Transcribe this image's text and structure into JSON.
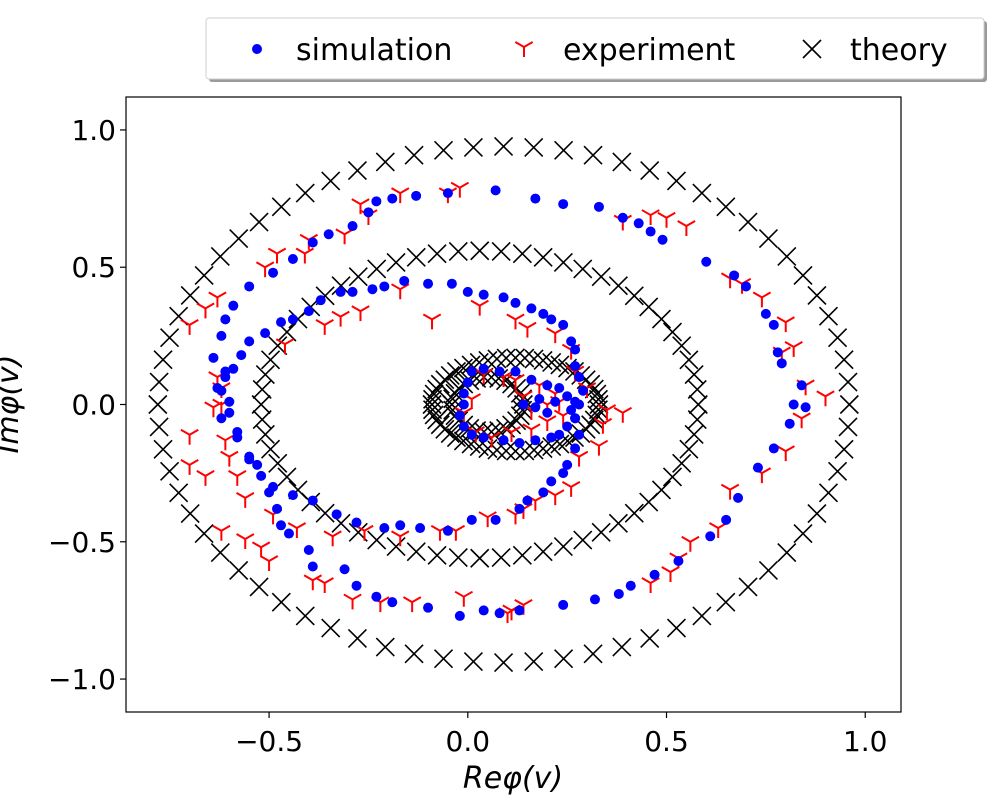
{
  "chart_data": {
    "type": "scatter",
    "xlabel": "Reφ(v)",
    "ylabel": "Imφ(v)",
    "xlim": [
      -0.86,
      1.09
    ],
    "ylim": [
      -1.12,
      1.12
    ],
    "xticks": [
      -0.5,
      0.0,
      0.5,
      1.0
    ],
    "yticks": [
      -1.0,
      -0.5,
      0.0,
      0.5,
      1.0
    ],
    "xtick_labels": [
      "−0.5",
      "0.0",
      "0.5",
      "1.0"
    ],
    "ytick_labels": [
      "−1.0",
      "−0.5",
      "0.0",
      "0.5",
      "1.0"
    ],
    "grid": false,
    "legend": {
      "placement": "top (outside, right-aligned)",
      "columns": 3
    },
    "series": [
      {
        "name": "simulation",
        "marker": "circle",
        "color": "#0000ff",
        "points": [
          [
            0.07,
            0.78
          ],
          [
            -0.05,
            0.77
          ],
          [
            0.17,
            0.75
          ],
          [
            -0.13,
            0.76
          ],
          [
            0.24,
            0.73
          ],
          [
            -0.19,
            0.75
          ],
          [
            0.33,
            0.72
          ],
          [
            -0.23,
            0.74
          ],
          [
            0.39,
            0.68
          ],
          [
            -0.25,
            0.7
          ],
          [
            0.43,
            0.66
          ],
          [
            -0.29,
            0.65
          ],
          [
            0.46,
            0.63
          ],
          [
            -0.35,
            0.62
          ],
          [
            0.49,
            0.6
          ],
          [
            -0.39,
            0.59
          ],
          [
            0.6,
            0.52
          ],
          [
            -0.44,
            0.53
          ],
          [
            0.67,
            0.47
          ],
          [
            -0.49,
            0.48
          ],
          [
            0.7,
            0.43
          ],
          [
            -0.55,
            0.43
          ],
          [
            0.75,
            0.33
          ],
          [
            -0.59,
            0.36
          ],
          [
            0.77,
            0.29
          ],
          [
            -0.61,
            0.31
          ],
          [
            0.78,
            0.19
          ],
          [
            -0.62,
            0.25
          ],
          [
            0.79,
            0.15
          ],
          [
            -0.64,
            0.17
          ],
          [
            0.84,
            0.07
          ],
          [
            -0.61,
            0.12
          ],
          [
            0.82,
            0.0
          ],
          [
            -0.63,
            0.06
          ],
          [
            0.85,
            -0.01
          ],
          [
            -0.6,
            0.01
          ],
          [
            0.81,
            -0.07
          ],
          [
            -0.62,
            -0.05
          ],
          [
            0.77,
            -0.16
          ],
          [
            -0.58,
            -0.1
          ],
          [
            0.73,
            -0.23
          ],
          [
            -0.55,
            -0.2
          ],
          [
            0.68,
            -0.34
          ],
          [
            -0.52,
            -0.26
          ],
          [
            0.65,
            -0.42
          ],
          [
            -0.5,
            -0.32
          ],
          [
            0.61,
            -0.48
          ],
          [
            -0.48,
            -0.38
          ],
          [
            0.53,
            -0.57
          ],
          [
            -0.47,
            -0.44
          ],
          [
            0.47,
            -0.62
          ],
          [
            -0.45,
            -0.47
          ],
          [
            0.41,
            -0.66
          ],
          [
            -0.4,
            -0.53
          ],
          [
            0.38,
            -0.69
          ],
          [
            -0.39,
            -0.59
          ],
          [
            0.32,
            -0.71
          ],
          [
            -0.31,
            -0.6
          ],
          [
            0.24,
            -0.73
          ],
          [
            -0.28,
            -0.66
          ],
          [
            0.13,
            -0.75
          ],
          [
            -0.23,
            -0.7
          ],
          [
            0.08,
            -0.76
          ],
          [
            -0.19,
            -0.72
          ],
          [
            0.04,
            -0.75
          ],
          [
            -0.1,
            -0.74
          ],
          [
            -0.02,
            -0.77
          ],
          [
            -0.21,
            -0.45
          ],
          [
            -0.17,
            -0.44
          ],
          [
            -0.12,
            -0.45
          ],
          [
            -0.05,
            -0.46
          ],
          [
            0.01,
            -0.42
          ],
          [
            0.07,
            -0.42
          ],
          [
            0.13,
            -0.38
          ],
          [
            0.15,
            -0.35
          ],
          [
            0.19,
            -0.32
          ],
          [
            0.21,
            -0.28
          ],
          [
            0.24,
            -0.25
          ],
          [
            0.25,
            -0.22
          ],
          [
            0.27,
            -0.16
          ],
          [
            0.28,
            -0.11
          ],
          [
            0.27,
            -0.05
          ],
          [
            0.28,
            0.0
          ],
          [
            0.29,
            0.05
          ],
          [
            0.28,
            0.1
          ],
          [
            0.27,
            0.14
          ],
          [
            0.27,
            0.2
          ],
          [
            0.26,
            0.23
          ],
          [
            0.24,
            0.29
          ],
          [
            0.21,
            0.31
          ],
          [
            0.19,
            0.33
          ],
          [
            0.16,
            0.35
          ],
          [
            0.12,
            0.37
          ],
          [
            0.09,
            0.39
          ],
          [
            0.04,
            0.4
          ],
          [
            0.0,
            0.41
          ],
          [
            -0.04,
            0.44
          ],
          [
            -0.1,
            0.44
          ],
          [
            -0.16,
            0.45
          ],
          [
            -0.21,
            0.43
          ],
          [
            -0.24,
            0.42
          ],
          [
            -0.29,
            0.41
          ],
          [
            -0.32,
            0.41
          ],
          [
            -0.37,
            0.38
          ],
          [
            -0.4,
            0.34
          ],
          [
            -0.44,
            0.31
          ],
          [
            -0.47,
            0.3
          ],
          [
            -0.51,
            0.26
          ],
          [
            -0.55,
            0.23
          ],
          [
            -0.57,
            0.18
          ],
          [
            -0.59,
            0.13
          ],
          [
            -0.61,
            0.1
          ],
          [
            -0.62,
            0.05
          ],
          [
            -0.6,
            -0.03
          ],
          [
            -0.58,
            -0.12
          ],
          [
            -0.55,
            -0.19
          ],
          [
            -0.53,
            -0.22
          ],
          [
            -0.49,
            -0.3
          ],
          [
            -0.44,
            -0.33
          ],
          [
            -0.39,
            -0.35
          ],
          [
            -0.33,
            -0.4
          ],
          [
            -0.28,
            -0.43
          ],
          [
            0.01,
            0.12
          ],
          [
            0.04,
            0.13
          ],
          [
            0.08,
            0.12
          ],
          [
            0.12,
            0.12
          ],
          [
            0.16,
            0.09
          ],
          [
            0.2,
            0.07
          ],
          [
            0.23,
            0.06
          ],
          [
            0.25,
            0.03
          ],
          [
            0.27,
            0.01
          ],
          [
            0.26,
            -0.02
          ],
          [
            0.27,
            -0.05
          ],
          [
            0.25,
            -0.08
          ],
          [
            0.23,
            -0.11
          ],
          [
            0.21,
            -0.12
          ],
          [
            0.17,
            -0.13
          ],
          [
            0.13,
            -0.14
          ],
          [
            0.09,
            -0.13
          ],
          [
            0.04,
            -0.12
          ],
          [
            0.01,
            -0.11
          ],
          [
            -0.01,
            -0.08
          ],
          [
            -0.02,
            -0.04
          ],
          [
            -0.01,
            0.0
          ],
          [
            -0.01,
            0.04
          ],
          [
            0.0,
            0.08
          ],
          [
            0.17,
            -0.01
          ],
          [
            0.18,
            0.02
          ],
          [
            0.2,
            -0.03
          ],
          [
            0.22,
            0.01
          ],
          [
            0.14,
            0.0
          ]
        ]
      },
      {
        "name": "experiment",
        "marker": "tri_down",
        "color": "#ff0000",
        "points": [
          [
            -0.02,
            0.79
          ],
          [
            -0.17,
            0.77
          ],
          [
            -0.27,
            0.73
          ],
          [
            -0.05,
            0.77
          ],
          [
            0.39,
            0.67
          ],
          [
            0.46,
            0.69
          ],
          [
            0.5,
            0.68
          ],
          [
            0.55,
            0.65
          ],
          [
            0.66,
            0.46
          ],
          [
            0.69,
            0.44
          ],
          [
            0.74,
            0.39
          ],
          [
            0.8,
            0.3
          ],
          [
            0.82,
            0.21
          ],
          [
            0.79,
            0.19
          ],
          [
            0.85,
            0.07
          ],
          [
            0.9,
            0.03
          ],
          [
            0.84,
            -0.05
          ],
          [
            0.8,
            -0.17
          ],
          [
            0.74,
            -0.25
          ],
          [
            0.66,
            -0.31
          ],
          [
            0.63,
            -0.45
          ],
          [
            0.56,
            -0.5
          ],
          [
            0.53,
            -0.56
          ],
          [
            0.51,
            -0.61
          ],
          [
            0.46,
            -0.65
          ],
          [
            0.14,
            -0.73
          ],
          [
            0.11,
            -0.75
          ],
          [
            0.1,
            -0.76
          ],
          [
            -0.01,
            -0.7
          ],
          [
            -0.14,
            -0.72
          ],
          [
            -0.22,
            -0.72
          ],
          [
            -0.29,
            -0.71
          ],
          [
            -0.36,
            -0.65
          ],
          [
            -0.39,
            -0.64
          ],
          [
            -0.5,
            -0.57
          ],
          [
            -0.52,
            -0.52
          ],
          [
            -0.56,
            -0.49
          ],
          [
            -0.62,
            -0.46
          ],
          [
            -0.66,
            -0.26
          ],
          [
            -0.7,
            -0.22
          ],
          [
            -0.7,
            -0.11
          ],
          [
            -0.61,
            -0.13
          ],
          [
            -0.64,
            -0.01
          ],
          [
            -0.62,
            0.06
          ],
          [
            -0.63,
            0.1
          ],
          [
            -0.7,
            0.29
          ],
          [
            -0.66,
            0.35
          ],
          [
            -0.63,
            0.39
          ],
          [
            -0.48,
            0.55
          ],
          [
            -0.51,
            0.5
          ],
          [
            -0.41,
            0.55
          ],
          [
            -0.4,
            0.6
          ],
          [
            -0.31,
            0.62
          ],
          [
            -0.25,
            0.69
          ],
          [
            -0.46,
            0.22
          ],
          [
            -0.36,
            0.29
          ],
          [
            -0.32,
            0.32
          ],
          [
            -0.27,
            0.34
          ],
          [
            -0.17,
            0.42
          ],
          [
            -0.09,
            0.31
          ],
          [
            0.03,
            0.36
          ],
          [
            0.12,
            0.31
          ],
          [
            0.15,
            0.28
          ],
          [
            0.22,
            0.26
          ],
          [
            0.26,
            0.2
          ],
          [
            0.27,
            0.12
          ],
          [
            0.3,
            0.06
          ],
          [
            0.35,
            -0.02
          ],
          [
            0.34,
            -0.07
          ],
          [
            0.39,
            -0.03
          ],
          [
            0.33,
            -0.15
          ],
          [
            0.28,
            -0.19
          ],
          [
            0.26,
            -0.3
          ],
          [
            0.22,
            -0.33
          ],
          [
            0.17,
            -0.35
          ],
          [
            0.14,
            -0.38
          ],
          [
            0.12,
            -0.4
          ],
          [
            0.05,
            -0.41
          ],
          [
            -0.03,
            -0.46
          ],
          [
            -0.07,
            -0.46
          ],
          [
            -0.17,
            -0.48
          ],
          [
            -0.26,
            -0.46
          ],
          [
            -0.34,
            -0.48
          ],
          [
            -0.43,
            -0.45
          ],
          [
            -0.49,
            -0.4
          ],
          [
            -0.56,
            -0.34
          ],
          [
            -0.58,
            -0.26
          ],
          [
            -0.6,
            -0.19
          ],
          [
            -0.62,
            0.0
          ],
          [
            0.04,
            0.11
          ],
          [
            0.09,
            0.1
          ],
          [
            0.12,
            0.09
          ],
          [
            0.18,
            0.07
          ],
          [
            0.22,
            0.04
          ],
          [
            0.23,
            0.01
          ],
          [
            0.24,
            -0.04
          ],
          [
            0.2,
            -0.06
          ],
          [
            0.16,
            -0.09
          ],
          [
            0.11,
            -0.1
          ],
          [
            0.06,
            -0.12
          ],
          [
            0.02,
            -0.1
          ],
          [
            -0.01,
            -0.03
          ],
          [
            0.01,
            0.02
          ],
          [
            0.14,
            0.03
          ],
          [
            0.16,
            -0.02
          ],
          [
            0.2,
            0.0
          ]
        ]
      },
      {
        "name": "theory",
        "marker": "x",
        "color": "#000000",
        "ellipses": [
          {
            "cx": 0.09,
            "cy": 0.0,
            "rx": 0.87,
            "ry": 0.94,
            "n": 72
          },
          {
            "cx": 0.03,
            "cy": 0.0,
            "rx": 0.55,
            "ry": 0.56,
            "n": 64
          },
          {
            "cx": 0.12,
            "cy": 0.0,
            "rx": 0.21,
            "ry": 0.17,
            "n": 56
          },
          {
            "cx": 0.05,
            "cy": 0.0,
            "rx": 0.09,
            "ry": 0.1,
            "n": 30
          }
        ]
      }
    ]
  }
}
